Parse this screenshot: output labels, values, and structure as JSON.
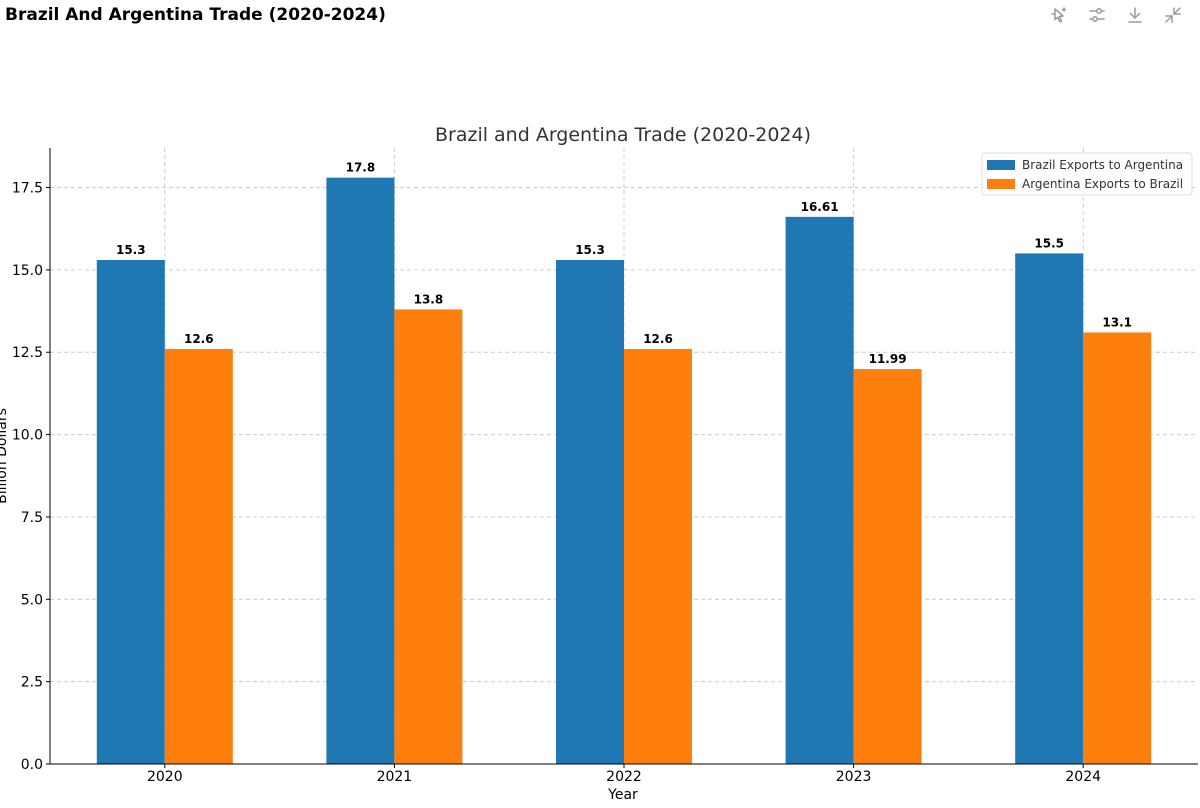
{
  "page": {
    "title": "Brazil And Argentina Trade (2020-2024)"
  },
  "toolbar": {
    "buttons": [
      {
        "name": "interactive-mode",
        "icon": "cursor-sparkle-icon"
      },
      {
        "name": "chart-settings",
        "icon": "sliders-icon"
      },
      {
        "name": "download",
        "icon": "download-icon"
      },
      {
        "name": "collapse",
        "icon": "collapse-icon"
      }
    ]
  },
  "chart_data": {
    "type": "bar",
    "title": "Brazil and Argentina Trade (2020-2024)",
    "xlabel": "Year",
    "ylabel": "Billion Dollars",
    "categories": [
      "2020",
      "2021",
      "2022",
      "2023",
      "2024"
    ],
    "series": [
      {
        "name": "Brazil Exports to Argentina",
        "color": "#1f77b4",
        "values": [
          15.3,
          17.8,
          15.3,
          16.61,
          15.5
        ],
        "labels": [
          "15.3",
          "17.8",
          "15.3",
          "16.61",
          "15.5"
        ]
      },
      {
        "name": "Argentina Exports to Brazil",
        "color": "#ff7f0e",
        "values": [
          12.6,
          13.8,
          12.6,
          11.99,
          13.1
        ],
        "labels": [
          "12.6",
          "13.8",
          "12.6",
          "11.99",
          "13.1"
        ]
      }
    ],
    "ylim": [
      0,
      18.7
    ],
    "yticks": [
      0,
      2.5,
      5,
      7.5,
      10,
      12.5,
      15,
      17.5
    ],
    "ytick_labels": [
      "0.0",
      "2.5",
      "5.0",
      "7.5",
      "10.0",
      "12.5",
      "15.0",
      "17.5"
    ],
    "grid": true,
    "legend_position": "top-right"
  }
}
